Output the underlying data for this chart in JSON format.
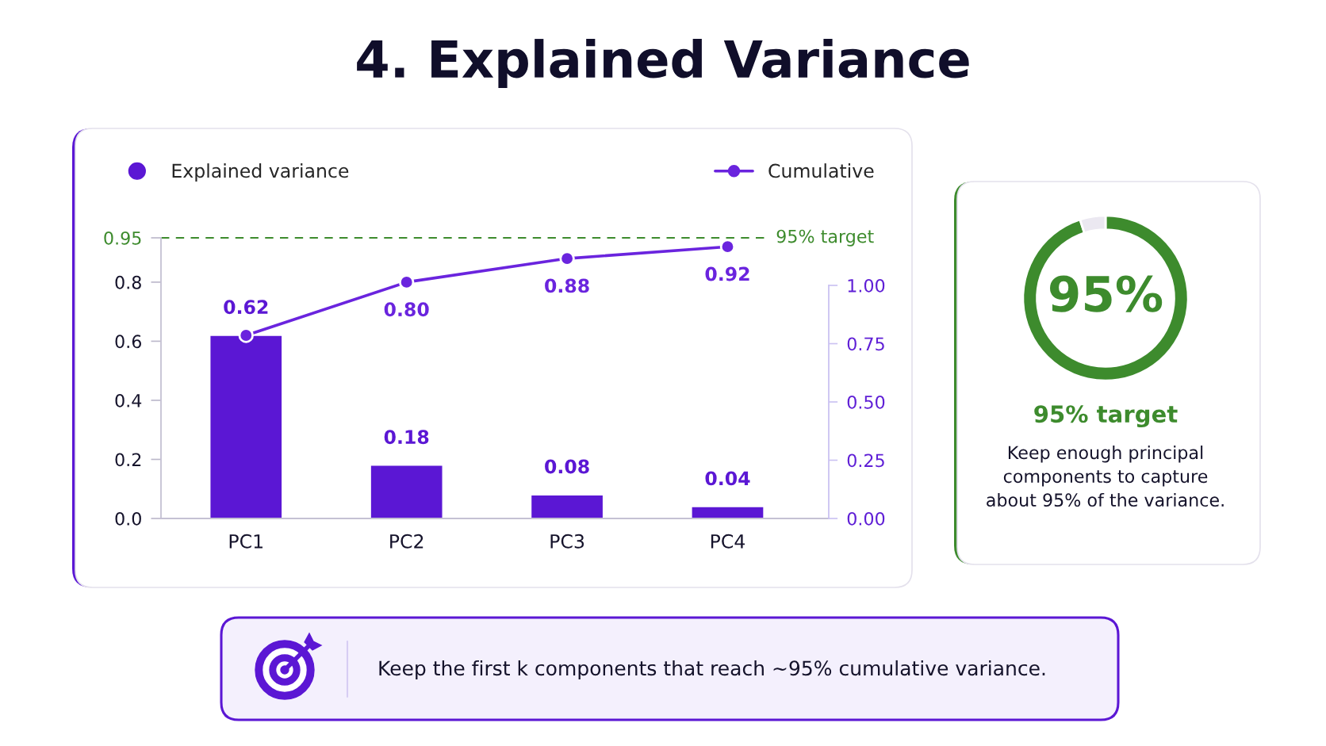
{
  "chart_data": [
    {
      "type": "bar",
      "title": "4. Explained Variance",
      "categories": [
        "PC1",
        "PC2",
        "PC3",
        "PC4"
      ],
      "series": [
        {
          "name": "Explained variance",
          "type": "bar",
          "color": "#5b17d4",
          "values": [
            0.62,
            0.18,
            0.08,
            0.04
          ],
          "value_labels": [
            "0.62",
            "0.18",
            "0.08",
            "0.04"
          ]
        },
        {
          "name": "Cumulative",
          "type": "line",
          "color": "#6a24de",
          "marker": "circle",
          "line_style": "solid",
          "values": [
            0.62,
            0.8,
            0.88,
            0.92
          ],
          "value_labels": [
            null,
            "0.80",
            "0.88",
            "0.92"
          ]
        }
      ],
      "ylim": [
        0,
        0.95
      ],
      "yticks": [
        {
          "value": 0,
          "label": "0.0"
        },
        0.2,
        0.4,
        0.6,
        0.8,
        0.95
      ],
      "y2lim": [
        0,
        1.0
      ],
      "y2ticks": [
        {
          "value": 0,
          "label": "0.00"
        },
        0.25,
        {
          "value": 0.5,
          "label": "0.50"
        },
        0.75,
        {
          "value": 1.0,
          "label": "1.00"
        }
      ],
      "ref_lines": [
        {
          "axis": "y",
          "value": 0.95,
          "label": "95% target",
          "color": "#3d8b2d",
          "line_style": "dashed"
        }
      ],
      "legend": "top",
      "annotations": [
        "Keep the first k components that reach ~95% cumulative variance."
      ]
    },
    {
      "type": "donut",
      "title": "95% target",
      "categories": [
        null,
        null
      ],
      "values": [
        95,
        5
      ],
      "colors": [
        "#3d8b2d",
        "#ebe8f1"
      ],
      "value_labels": [
        "95%",
        null
      ],
      "annotations": [
        "Keep enough principal components to capture about 95% of the variance."
      ]
    }
  ]
}
